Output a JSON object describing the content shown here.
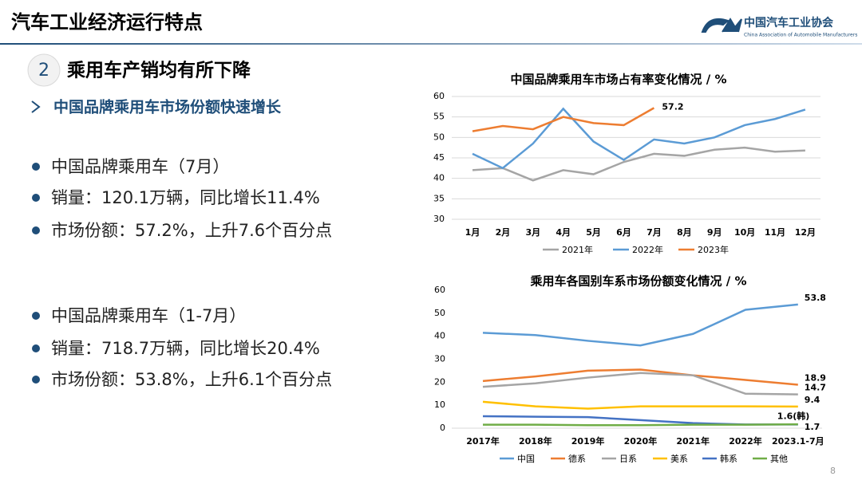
{
  "slide": {
    "header": "汽车工业经济运行特点",
    "logo_name": "中国汽车工业协会",
    "logo_english": "China Association of Automobile Manufacturers",
    "section_number": "2",
    "section_title": "乘用车产销均有所下降",
    "subtitle": "中国品牌乘用车市场份额快速增长",
    "bullets": [
      [
        "中国品牌乘用车（7月）",
        "销量：120.1万辆，同比增长11.4%",
        "市场份额：57.2%，上升7.6个百分点"
      ],
      [
        "中国品牌乘用车（1-7月）",
        "销量：718.7万辆，同比增长20.4%",
        "市场份额：53.8%，上升6.1个百分点"
      ]
    ],
    "page_number": "8"
  },
  "chart_data": [
    {
      "type": "line",
      "title": "中国品牌乘用车市场占有率变化情况 / %",
      "categories": [
        "1月",
        "2月",
        "3月",
        "4月",
        "5月",
        "6月",
        "7月",
        "8月",
        "9月",
        "10月",
        "11月",
        "12月"
      ],
      "ylim": [
        30,
        60
      ],
      "yticks": [
        30,
        35,
        40,
        45,
        50,
        55,
        60
      ],
      "grid": true,
      "data_labels": "last",
      "series": [
        {
          "name": "2021年",
          "color": "#a5a5a5",
          "values": [
            42,
            42.5,
            39.5,
            42,
            41,
            44,
            46,
            45.5,
            47,
            47.5,
            46.5,
            46.8
          ],
          "data_labels": false
        },
        {
          "name": "2022年",
          "color": "#5b9bd5",
          "values": [
            46,
            42.5,
            48.5,
            57,
            49,
            44.5,
            49.5,
            48.5,
            50,
            53,
            54.5,
            56.8
          ],
          "data_labels": false
        },
        {
          "name": "2023年",
          "color": "#ed7d31",
          "values": [
            51.5,
            52.8,
            52,
            55,
            53.5,
            53,
            57.2,
            null,
            null,
            null,
            null,
            null
          ],
          "data_labels": true
        }
      ]
    },
    {
      "type": "line",
      "title": "乘用车各国别车系市场份额变化情况 / %",
      "categories": [
        "2017年",
        "2018年",
        "2019年",
        "2020年",
        "2021年",
        "2022年",
        "2023.1-7月"
      ],
      "ylim": [
        0,
        60
      ],
      "yticks": [
        0,
        10,
        20,
        30,
        40,
        50,
        60
      ],
      "grid": false,
      "data_labels": "last",
      "series": [
        {
          "name": "中国",
          "color": "#5b9bd5",
          "values": [
            41.5,
            40.5,
            38,
            36,
            41,
            51.5,
            53.8
          ],
          "data_labels": true
        },
        {
          "name": "德系",
          "color": "#ed7d31",
          "values": [
            20.5,
            22.5,
            25,
            25.5,
            23,
            21,
            18.9
          ],
          "data_labels": true
        },
        {
          "name": "日系",
          "color": "#a5a5a5",
          "values": [
            18,
            19.5,
            22,
            24,
            23,
            15,
            14.7
          ],
          "data_labels": true
        },
        {
          "name": "美系",
          "color": "#ffc000",
          "values": [
            11.5,
            9.5,
            8.5,
            9.5,
            9.5,
            9.5,
            9.4
          ],
          "data_labels": true
        },
        {
          "name": "韩系",
          "color": "#4472c4",
          "values": [
            5.2,
            5,
            4.8,
            3.5,
            2.2,
            1.6,
            1.6
          ],
          "value_labels": [
            null,
            null,
            null,
            null,
            null,
            null,
            "1.6(韩)"
          ],
          "data_labels": true
        },
        {
          "name": "其他",
          "color": "#70ad47",
          "values": [
            1.5,
            1.5,
            1.3,
            1.3,
            1.5,
            1.5,
            1.7
          ],
          "data_labels": true
        }
      ]
    }
  ]
}
